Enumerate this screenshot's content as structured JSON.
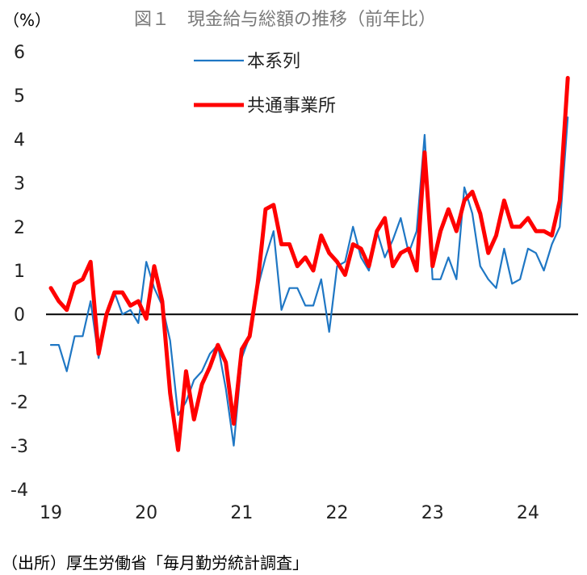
{
  "chart_data": {
    "type": "line",
    "title": "図１　現金給与総額の推移（前年比）",
    "ylabel": "（%）",
    "ylim": [
      -4,
      6
    ],
    "yticks": [
      6,
      5,
      4,
      3,
      2,
      1,
      0,
      -1,
      -2,
      -3,
      -4
    ],
    "xlim": [
      2019,
      2024.5
    ],
    "xticks": [
      {
        "value": 2019,
        "label": "19"
      },
      {
        "value": 2020,
        "label": "20"
      },
      {
        "value": 2021,
        "label": "21"
      },
      {
        "value": 2022,
        "label": "22"
      },
      {
        "value": 2023,
        "label": "23"
      },
      {
        "value": 2024,
        "label": "24"
      }
    ],
    "zero_line": true,
    "legend_position": "top-center",
    "series": [
      {
        "name": "本系列",
        "color": "#1f77c4",
        "start": 2019,
        "step_months": 1,
        "values": [
          -0.7,
          -0.7,
          -1.3,
          -0.5,
          -0.5,
          0.3,
          -1.0,
          0.0,
          0.5,
          0.0,
          0.1,
          -0.2,
          1.2,
          0.6,
          0.2,
          -0.6,
          -2.3,
          -2.0,
          -1.5,
          -1.3,
          -0.9,
          -0.7,
          -1.7,
          -3.0,
          -1.0,
          -0.5,
          0.6,
          1.3,
          1.9,
          0.1,
          0.6,
          0.6,
          0.2,
          0.2,
          0.8,
          -0.4,
          1.1,
          1.2,
          2.0,
          1.3,
          1.0,
          1.9,
          1.3,
          1.7,
          2.2,
          1.4,
          1.9,
          4.1,
          0.8,
          0.8,
          1.3,
          0.8,
          2.9,
          2.3,
          1.1,
          0.8,
          0.6,
          1.5,
          0.7,
          0.8,
          1.5,
          1.4,
          1.0,
          1.6,
          2.0,
          4.5
        ]
      },
      {
        "name": "共通事業所",
        "color": "#ff0000",
        "start": 2019,
        "step_months": 1,
        "values": [
          0.6,
          0.3,
          0.1,
          0.7,
          0.8,
          1.2,
          -0.9,
          0.0,
          0.5,
          0.5,
          0.2,
          0.3,
          -0.1,
          1.1,
          0.3,
          -1.8,
          -3.1,
          -1.3,
          -2.4,
          -1.6,
          -1.2,
          -0.7,
          -1.1,
          -2.5,
          -0.8,
          -0.5,
          0.7,
          2.4,
          2.5,
          1.6,
          1.6,
          1.1,
          1.3,
          1.0,
          1.8,
          1.4,
          1.2,
          0.9,
          1.6,
          1.5,
          1.1,
          1.9,
          2.2,
          1.1,
          1.4,
          1.5,
          1.0,
          3.7,
          1.1,
          1.9,
          2.4,
          1.9,
          2.6,
          2.8,
          2.3,
          1.4,
          1.8,
          2.6,
          2.0,
          2.0,
          2.2,
          1.9,
          1.9,
          1.8,
          2.6,
          5.4
        ]
      }
    ]
  },
  "source": "（出所）厚生労働省「毎月勤労統計調査」"
}
